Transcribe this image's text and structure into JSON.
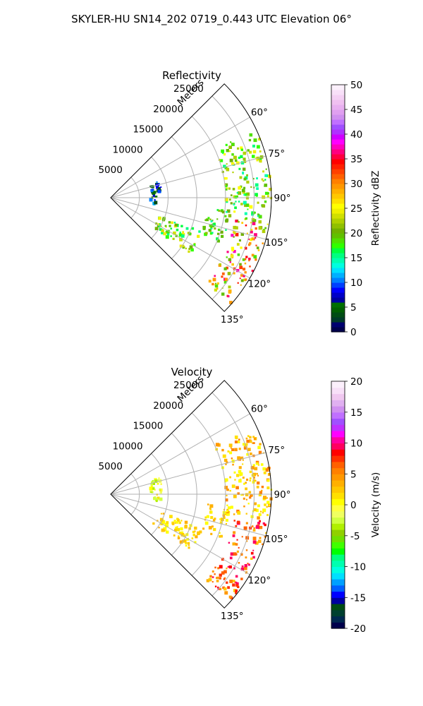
{
  "figure_title": "SKYLER-HU  SN14_202  0719_0.443 UTC Elevation 06°",
  "colors": {
    "grid": "#b0b0b0",
    "axis": "#000000",
    "reflectivity_scale": [
      "#00004c",
      "#00006f",
      "#003a28",
      "#004c14",
      "#005f00",
      "#006f00",
      "#0000a0",
      "#0000c8",
      "#0000ff",
      "#0040ff",
      "#0080ff",
      "#00b0ff",
      "#00e0ff",
      "#00ffe0",
      "#00ffb0",
      "#00ff80",
      "#00ff40",
      "#30ff00",
      "#50e000",
      "#60c000",
      "#70b000",
      "#90c000",
      "#b0d000",
      "#d0e000",
      "#f0f000",
      "#ffff00",
      "#ffe000",
      "#ffc800",
      "#ffb000",
      "#ff9800",
      "#ff8000",
      "#ff6000",
      "#ff4000",
      "#ff2000",
      "#ff0000",
      "#ff0040",
      "#ff0080",
      "#ff00c0",
      "#ff00ff",
      "#d000ff",
      "#b030ff",
      "#a050ff",
      "#c070ff",
      "#d090f0",
      "#e0a0f0",
      "#e8b0f0",
      "#f0c0f0",
      "#f4d0f4",
      "#f8e0f8",
      "#fcf0fc"
    ],
    "velocity_scale": [
      "#00004c",
      "#002850",
      "#004030",
      "#004c14",
      "#0000a0",
      "#0000ff",
      "#0060ff",
      "#00a0ff",
      "#00e0ff",
      "#00ffe0",
      "#00ffb0",
      "#00ff80",
      "#00ff00",
      "#40ff00",
      "#70e000",
      "#90d000",
      "#b0f000",
      "#d0ff40",
      "#f0ff60",
      "#ffff40",
      "#ffff00",
      "#ffe000",
      "#ffc800",
      "#ffb000",
      "#ff9800",
      "#ff8000",
      "#ff6000",
      "#ff3000",
      "#ff0000",
      "#ff0060",
      "#ff00a0",
      "#ff00ff",
      "#c030ff",
      "#a050ff",
      "#c070ff",
      "#d090f0",
      "#e0b0f0",
      "#f0c8f0",
      "#f8e0f8",
      "#fcf0fc"
    ]
  },
  "chart_data": [
    {
      "type": "heatmap",
      "projection": "polar-sector",
      "title": "Reflectivity",
      "radial_label": "Meters",
      "azimuth_range_deg": [
        45,
        135
      ],
      "range_limit_m": 28000,
      "radial_ticks": [
        "5000",
        "10000",
        "15000",
        "20000",
        "25000"
      ],
      "angular_ticks": [
        "60°",
        "75°",
        "90°",
        "105°",
        "120°",
        "135°"
      ],
      "colorbar": {
        "label": "Reflectivity dBZ",
        "min": 0,
        "max": 50,
        "ticks": [
          "0",
          "5",
          "10",
          "15",
          "20",
          "25",
          "30",
          "35",
          "40",
          "45",
          "50"
        ]
      },
      "echo_regions": [
        {
          "az_start": 65,
          "az_end": 100,
          "r_start": 20000,
          "r_end": 28000,
          "value_range": [
            14,
            26
          ]
        },
        {
          "az_start": 100,
          "az_end": 132,
          "r_start": 22000,
          "r_end": 28000,
          "value_range": [
            18,
            38
          ]
        },
        {
          "az_start": 110,
          "az_end": 125,
          "r_start": 9000,
          "r_end": 17000,
          "value_range": [
            15,
            25
          ]
        },
        {
          "az_start": 95,
          "az_end": 112,
          "r_start": 17000,
          "r_end": 21000,
          "value_range": [
            14,
            22
          ]
        },
        {
          "az_start": 70,
          "az_end": 100,
          "r_start": 7000,
          "r_end": 9000,
          "value_range": [
            2,
            12
          ]
        }
      ]
    },
    {
      "type": "heatmap",
      "projection": "polar-sector",
      "title": "Velocity",
      "radial_label": "Meters",
      "azimuth_range_deg": [
        45,
        135
      ],
      "range_limit_m": 28000,
      "radial_ticks": [
        "5000",
        "10000",
        "15000",
        "20000",
        "25000"
      ],
      "angular_ticks": [
        "60°",
        "75°",
        "90°",
        "105°",
        "120°",
        "135°"
      ],
      "colorbar": {
        "label": "Velocity (m/s)",
        "min": -20,
        "max": 20,
        "ticks": [
          "-20",
          "-15",
          "-10",
          "-5",
          "0",
          "5",
          "10",
          "15",
          "20"
        ]
      },
      "echo_regions": [
        {
          "az_start": 65,
          "az_end": 100,
          "r_start": 20000,
          "r_end": 28000,
          "value_range": [
            0,
            6
          ]
        },
        {
          "az_start": 100,
          "az_end": 132,
          "r_start": 22000,
          "r_end": 28000,
          "value_range": [
            2,
            10
          ]
        },
        {
          "az_start": 110,
          "az_end": 125,
          "r_start": 9000,
          "r_end": 17000,
          "value_range": [
            0,
            4
          ]
        },
        {
          "az_start": 95,
          "az_end": 112,
          "r_start": 17000,
          "r_end": 21000,
          "value_range": [
            0,
            4
          ]
        },
        {
          "az_start": 70,
          "az_end": 100,
          "r_start": 7000,
          "r_end": 9000,
          "value_range": [
            -4,
            2
          ]
        }
      ]
    }
  ]
}
